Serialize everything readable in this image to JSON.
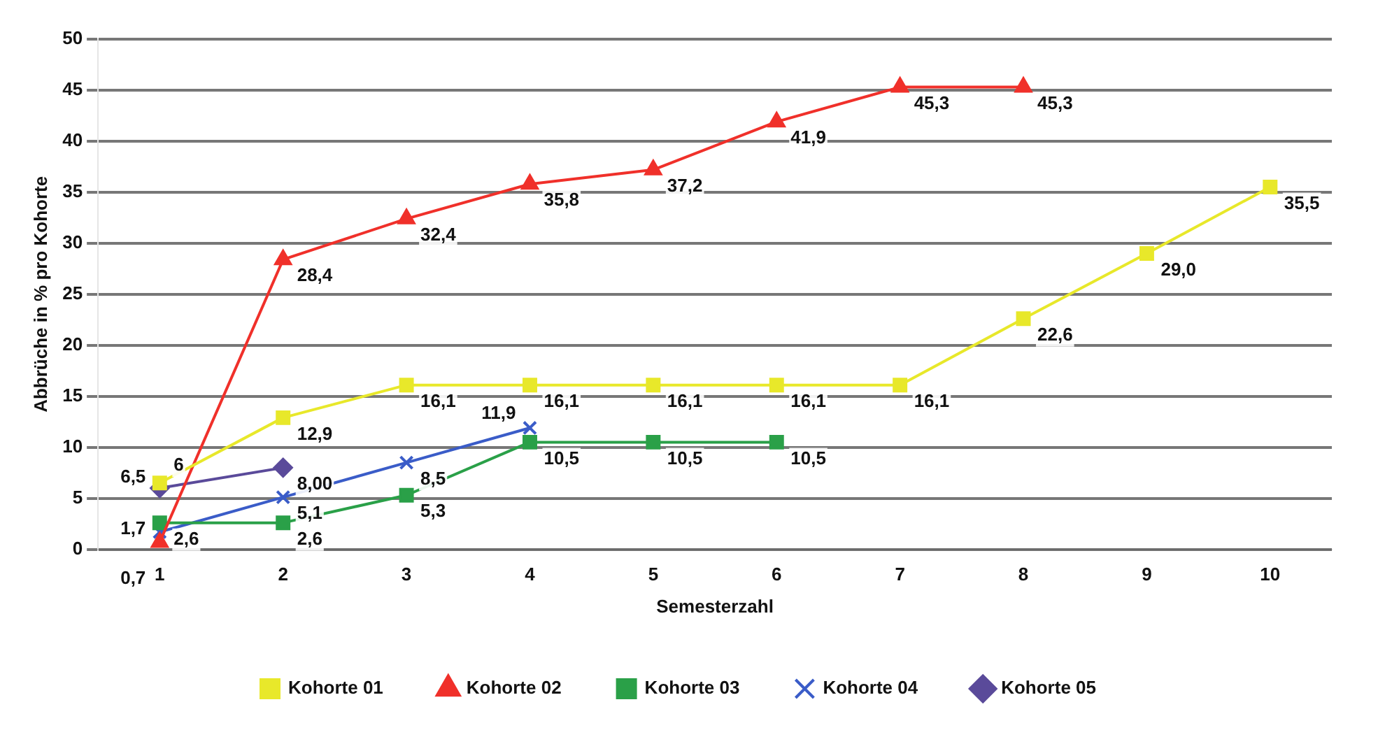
{
  "chart_data": {
    "type": "line",
    "xlabel": "Semesterzahl",
    "ylabel": "Abbrüche in % pro Kohorte",
    "x": [
      1,
      2,
      3,
      4,
      5,
      6,
      7,
      8,
      9,
      10
    ],
    "xlim": [
      0.5,
      10.5
    ],
    "xticks": [
      1,
      2,
      3,
      4,
      5,
      6,
      7,
      8,
      9,
      10
    ],
    "ylim": [
      0,
      50
    ],
    "yticks": [
      0,
      5,
      10,
      15,
      20,
      25,
      30,
      35,
      40,
      45,
      50
    ],
    "grid": "y",
    "legend": "bottom",
    "series": [
      {
        "name": "Kohorte 01",
        "color": "#e8e82a",
        "marker": "square",
        "values": [
          6.5,
          12.9,
          16.1,
          16.1,
          16.1,
          16.1,
          16.1,
          22.6,
          29.0,
          35.5
        ],
        "value_labels": [
          "6,5",
          "12,9",
          "16,1",
          "16,1",
          "16,1",
          "16,1",
          "16,1",
          "22,6",
          "29,0",
          "35,5"
        ]
      },
      {
        "name": "Kohorte 02",
        "color": "#f0302a",
        "marker": "triangle",
        "values": [
          0.7,
          28.4,
          32.4,
          35.8,
          37.2,
          41.9,
          45.3,
          45.3,
          null,
          null
        ],
        "value_labels": [
          "0,7",
          "28,4",
          "32,4",
          "35,8",
          "37,2",
          "41,9",
          "45,3",
          "45,3",
          null,
          null
        ]
      },
      {
        "name": "Kohorte 03",
        "color": "#2aa048",
        "marker": "square",
        "values": [
          2.6,
          2.6,
          5.3,
          10.5,
          10.5,
          10.5,
          null,
          null,
          null,
          null
        ],
        "value_labels": [
          "2,6",
          "2,6",
          "5,3",
          "10,5",
          "10,5",
          "10,5",
          null,
          null,
          null,
          null
        ]
      },
      {
        "name": "Kohorte 04",
        "color": "#3a5cc8",
        "marker": "cross",
        "values": [
          1.7,
          5.1,
          8.5,
          11.9,
          null,
          null,
          null,
          null,
          null,
          null
        ],
        "value_labels": [
          "1,7",
          "5,1",
          "8,5",
          "11,9",
          null,
          null,
          null,
          null,
          null,
          null
        ]
      },
      {
        "name": "Kohorte 05",
        "color": "#5a4a9a",
        "marker": "diamond",
        "values": [
          6,
          8.0,
          null,
          null,
          null,
          null,
          null,
          null,
          null,
          null
        ],
        "value_labels": [
          "6",
          "8,00",
          null,
          null,
          null,
          null,
          null,
          null,
          null,
          null
        ]
      }
    ]
  }
}
